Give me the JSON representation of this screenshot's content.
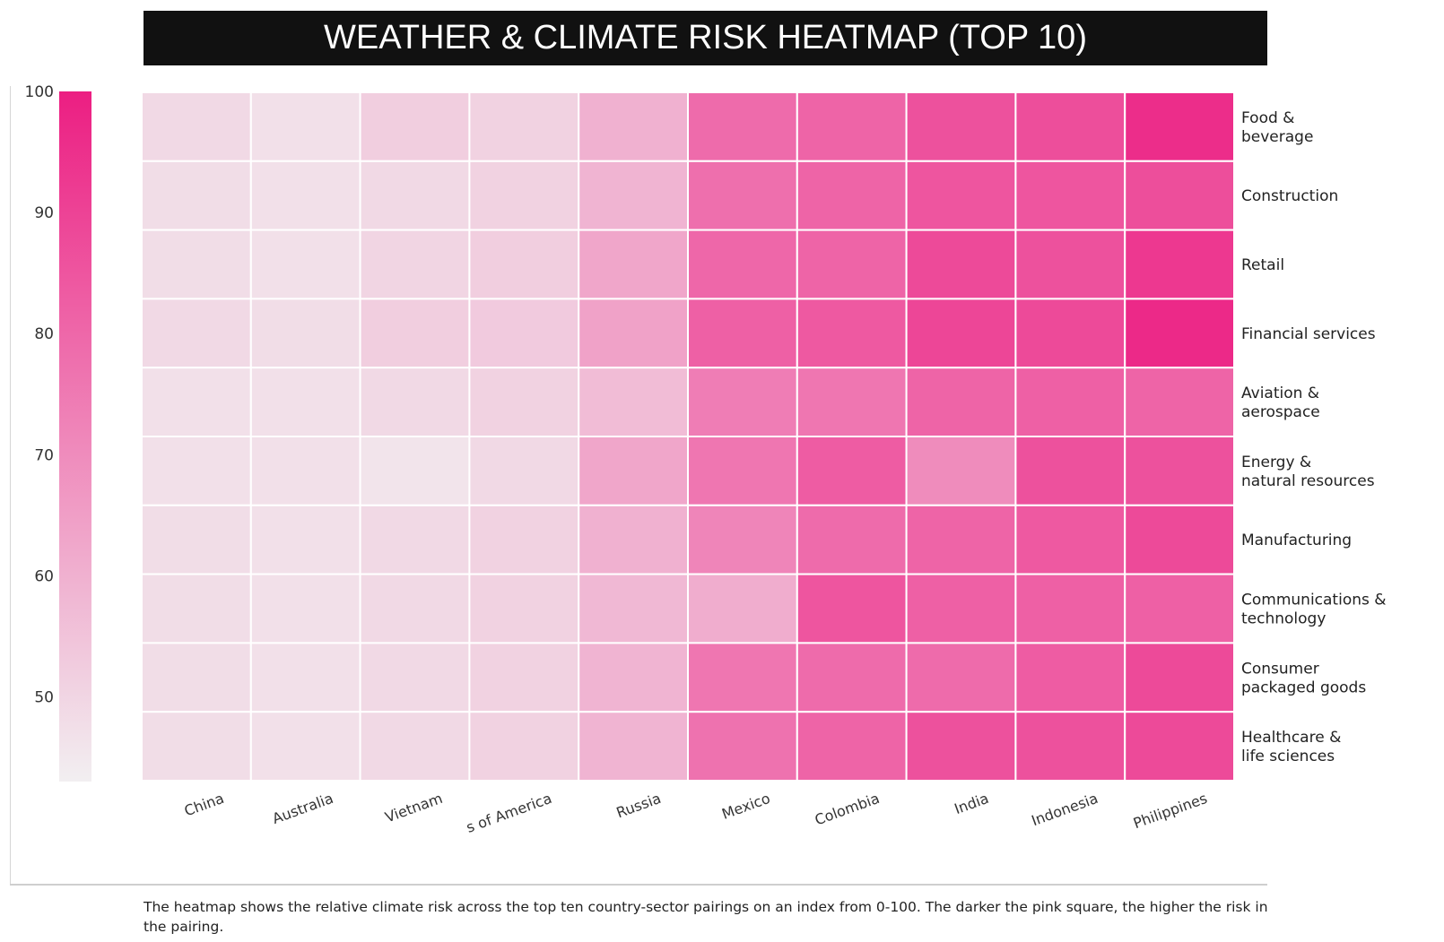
{
  "header": {
    "title": "WEATHER & CLIMATE RISK HEATMAP (TOP 10)"
  },
  "caption": "The heatmap shows the relative climate risk across the top ten country-sector pairings on an index from 0-100. The darker the pink square, the higher the risk in the pairing.",
  "colors": {
    "low": "#f2eff1",
    "high": "#ec1e82",
    "grid": "#ffffff",
    "title_bg": "#111111"
  },
  "chart_data": {
    "type": "heatmap",
    "title": "WEATHER & CLIMATE RISK HEATMAP (TOP 10)",
    "x": [
      "China",
      "Australia",
      "Vietnam",
      "United States of America",
      "Russia",
      "Mexico",
      "Colombia",
      "India",
      "Indonesia",
      "Philippines"
    ],
    "x_visible": [
      "China",
      "Australia",
      "Vietnam",
      "s of America",
      "Russia",
      "Mexico",
      "Colombia",
      "India",
      "Indonesia",
      "Philippines"
    ],
    "y": [
      "Food & beverage",
      "Construction",
      "Retail",
      "Financial services",
      "Aviation & aerospace",
      "Energy & natural resources",
      "Manufacturing",
      "Communications & technology",
      "Consumer packaged goods",
      "Healthcare & life sciences"
    ],
    "y_lines": [
      [
        "Food &",
        "beverage"
      ],
      [
        "Construction"
      ],
      [
        "Retail"
      ],
      [
        "Financial services"
      ],
      [
        "Aviation &",
        "aerospace"
      ],
      [
        "Energy &",
        "natural resources"
      ],
      [
        "Manufacturing"
      ],
      [
        "Communications &",
        "technology"
      ],
      [
        "Consumer",
        "packaged goods"
      ],
      [
        "Healthcare &",
        "life sciences"
      ]
    ],
    "values": [
      [
        49,
        47,
        52,
        51,
        60,
        79,
        81,
        86,
        87,
        96
      ],
      [
        48,
        47,
        49,
        51,
        59,
        78,
        81,
        85,
        85,
        87
      ],
      [
        48,
        47,
        50,
        52,
        63,
        80,
        81,
        88,
        86,
        93
      ],
      [
        49,
        48,
        52,
        53,
        64,
        82,
        84,
        89,
        88,
        97
      ],
      [
        47,
        47,
        49,
        51,
        57,
        74,
        76,
        81,
        82,
        81
      ],
      [
        47,
        47,
        46,
        49,
        63,
        76,
        83,
        70,
        86,
        86
      ],
      [
        48,
        47,
        49,
        51,
        60,
        72,
        79,
        81,
        84,
        88
      ],
      [
        48,
        47,
        49,
        51,
        58,
        61,
        85,
        82,
        82,
        82
      ],
      [
        48,
        47,
        49,
        51,
        59,
        76,
        79,
        79,
        83,
        88
      ],
      [
        48,
        47,
        49,
        51,
        59,
        77,
        81,
        86,
        86,
        88
      ]
    ],
    "colorbar": {
      "min": 43,
      "max": 100,
      "ticks": [
        50,
        60,
        70,
        80,
        90,
        100
      ]
    }
  }
}
